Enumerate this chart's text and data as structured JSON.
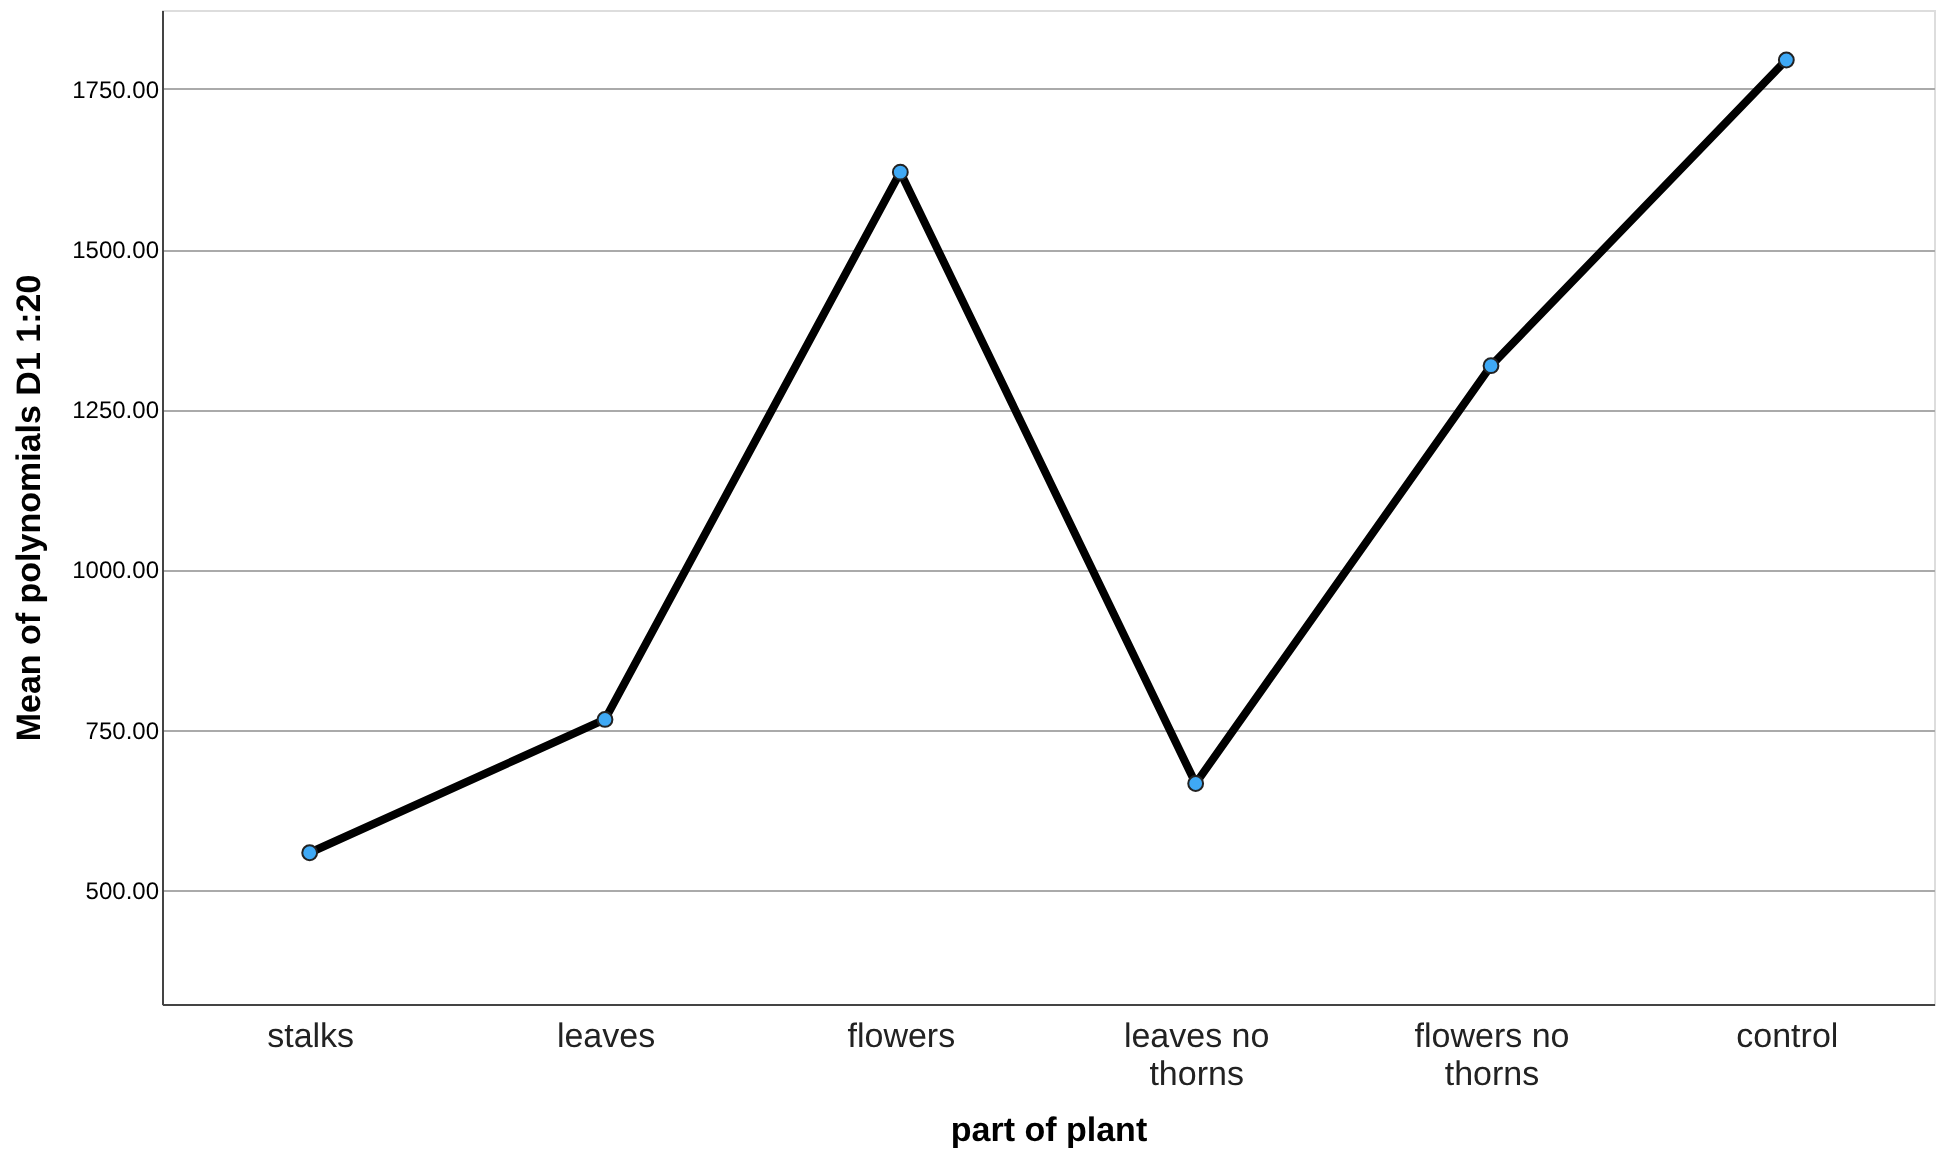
{
  "chart_data": {
    "type": "line",
    "xlabel": "part of plant",
    "ylabel": "Mean of polynomials D1 1:20",
    "categories": [
      "stalks",
      "leaves",
      "flowers",
      "leaves no thorns",
      "flowers no thorns",
      "control"
    ],
    "series": [
      {
        "color": "#000000",
        "colors": [
          "#3fa9f5",
          "#3fa9f5",
          "#3fa9f5",
          "#3fa9f5",
          "#3fa9f5",
          "#3fa9f5"
        ],
        "values": [
          558,
          766,
          1620,
          666,
          1318,
          1795
        ]
      }
    ],
    "ylim": [
      322,
      1873
    ],
    "yticks": [
      {
        "value": 500,
        "label": "500.00"
      },
      {
        "value": 750,
        "label": "750.00"
      },
      {
        "value": 1000,
        "label": "1000.00"
      },
      {
        "value": 1250,
        "label": "1250.00"
      },
      {
        "value": 1500,
        "label": "1500.00"
      },
      {
        "value": 1750,
        "label": "1750.00"
      }
    ],
    "grid": "y",
    "marker": "circle",
    "line_style": "solid"
  }
}
